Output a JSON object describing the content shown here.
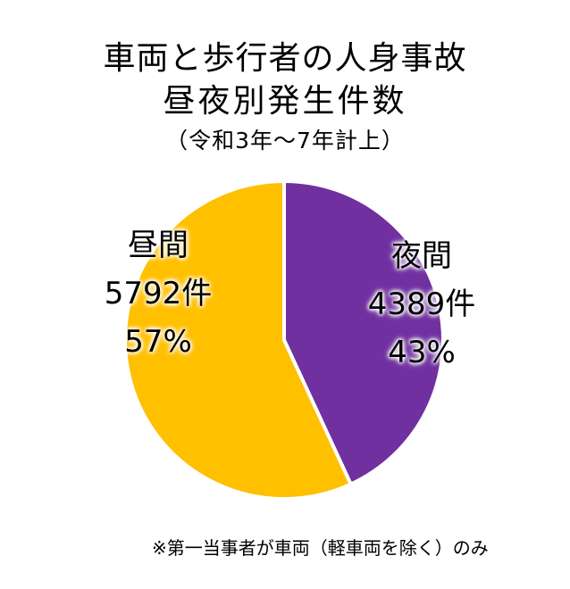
{
  "chart_data": {
    "type": "pie",
    "title": "車両と歩行者の人身事故",
    "subtitle": "昼夜別発生件数",
    "period": "（令和3年～7年計上）",
    "categories": [
      "夜間",
      "昼間"
    ],
    "values": [
      4389,
      5792
    ],
    "percentages": [
      43,
      57
    ],
    "unit": "件",
    "colors": [
      "#7030A0",
      "#FFC000"
    ],
    "start_angle_deg": 0,
    "direction": "clockwise",
    "legend": "none",
    "note": "※第一当事者が車両（軽車両を除く）のみ"
  },
  "labels": {
    "day": {
      "name": "昼間",
      "count": "5792件",
      "pct": "57%"
    },
    "night": {
      "name": "夜間",
      "count": "4389件",
      "pct": "43%"
    }
  }
}
